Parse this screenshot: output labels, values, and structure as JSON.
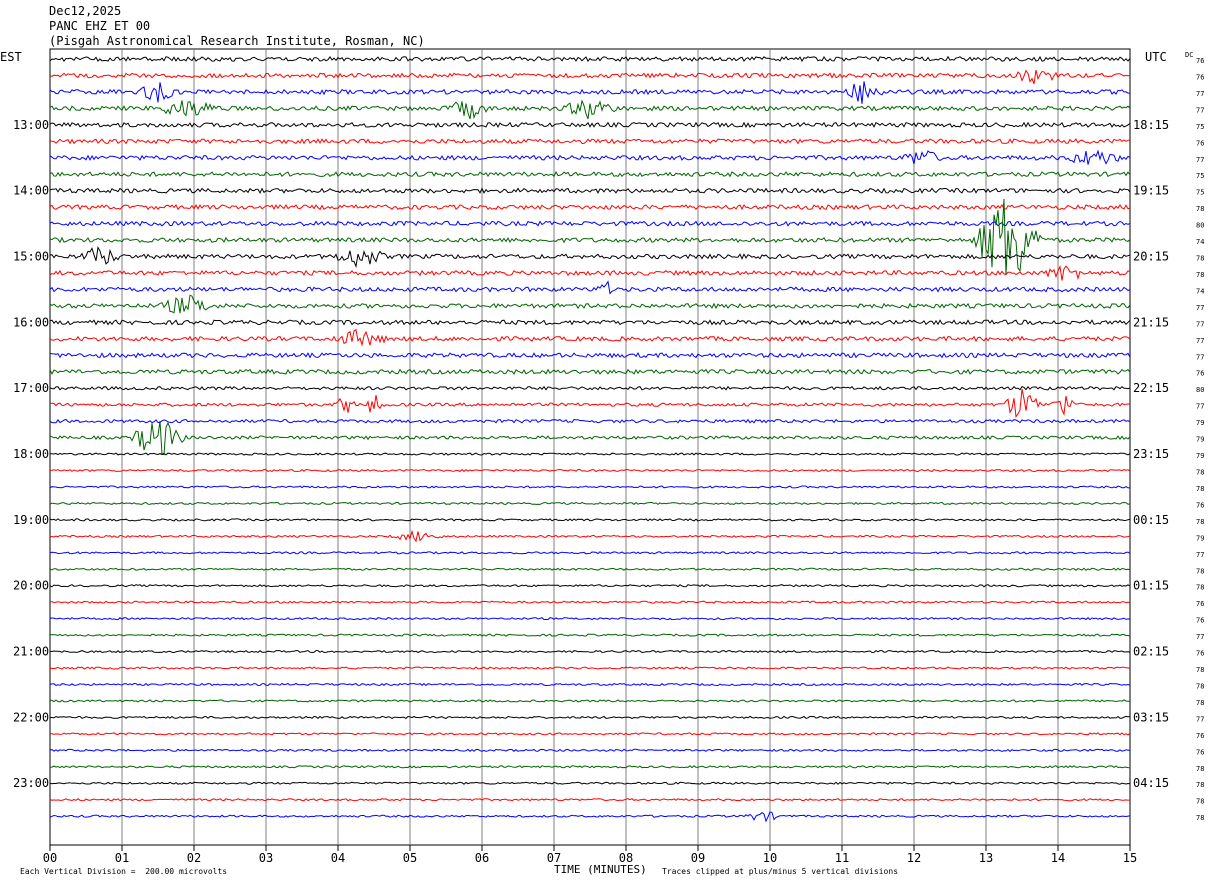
{
  "header": {
    "date": "Dec12,2025",
    "station": "PANC EHZ ET 00",
    "site": "(Pisgah Astronomical Research Institute, Rosman, NC)"
  },
  "chart_data": {
    "type": "line",
    "left_timezone_label": "EST",
    "right_timezone_label": "UTC",
    "dc_label": "DC",
    "trace_colors": [
      "#000000",
      "#ff0000",
      "#0000ff",
      "#006400"
    ],
    "trace_count": 47,
    "traces_per_hour": 4,
    "left_hour_labels": [
      "13:00",
      "14:00",
      "15:00",
      "16:00",
      "17:00",
      "18:00",
      "19:00",
      "20:00",
      "21:00",
      "22:00",
      "23:00"
    ],
    "right_hour_labels": [
      "18:15",
      "19:15",
      "20:15",
      "21:15",
      "22:15",
      "23:15",
      "00:15",
      "01:15",
      "02:15",
      "03:15",
      "04:15"
    ],
    "dc_offsets": [
      76,
      76,
      77,
      77,
      75,
      76,
      77,
      75,
      75,
      78,
      80,
      74,
      78,
      78,
      74,
      77,
      77,
      77,
      77,
      76,
      80,
      77,
      79,
      79,
      79,
      78,
      78,
      76,
      78,
      79,
      77,
      78,
      78,
      76,
      76,
      77,
      76,
      78,
      78,
      78,
      77,
      76,
      76,
      78,
      78,
      78,
      78
    ],
    "x_ticks": [
      "00",
      "01",
      "02",
      "03",
      "04",
      "05",
      "06",
      "07",
      "08",
      "09",
      "10",
      "11",
      "12",
      "13",
      "14",
      "15"
    ],
    "xlabel": "TIME (MINUTES)",
    "xlim": [
      0,
      15
    ],
    "events": [
      {
        "trace": 1,
        "minute": 13.7,
        "amplitude": 0.6,
        "width": 0.3
      },
      {
        "trace": 2,
        "minute": 1.5,
        "amplitude": 0.5,
        "width": 0.3
      },
      {
        "trace": 2,
        "minute": 11.3,
        "amplitude": 0.7,
        "width": 0.3
      },
      {
        "trace": 3,
        "minute": 1.9,
        "amplitude": 0.5,
        "width": 0.5
      },
      {
        "trace": 3,
        "minute": 5.8,
        "amplitude": 0.6,
        "width": 0.3
      },
      {
        "trace": 3,
        "minute": 7.5,
        "amplitude": 0.6,
        "width": 0.4
      },
      {
        "trace": 6,
        "minute": 12.1,
        "amplitude": 0.5,
        "width": 0.3
      },
      {
        "trace": 6,
        "minute": 14.5,
        "amplitude": 0.5,
        "width": 0.4
      },
      {
        "trace": 11,
        "minute": 13.3,
        "amplitude": 3.2,
        "width": 0.5
      },
      {
        "trace": 12,
        "minute": 0.7,
        "amplitude": 0.6,
        "width": 0.3
      },
      {
        "trace": 12,
        "minute": 4.3,
        "amplitude": 0.6,
        "width": 0.4
      },
      {
        "trace": 13,
        "minute": 14.1,
        "amplitude": 0.5,
        "width": 0.3
      },
      {
        "trace": 14,
        "minute": 7.7,
        "amplitude": 0.7,
        "width": 0.1
      },
      {
        "trace": 15,
        "minute": 1.9,
        "amplitude": 0.6,
        "width": 0.4
      },
      {
        "trace": 17,
        "minute": 4.3,
        "amplitude": 0.5,
        "width": 0.4
      },
      {
        "trace": 21,
        "minute": 4.1,
        "amplitude": 0.6,
        "width": 0.15
      },
      {
        "trace": 21,
        "minute": 4.5,
        "amplitude": 0.6,
        "width": 0.15
      },
      {
        "trace": 21,
        "minute": 13.5,
        "amplitude": 1.0,
        "width": 0.3
      },
      {
        "trace": 21,
        "minute": 14.1,
        "amplitude": 0.7,
        "width": 0.2
      },
      {
        "trace": 23,
        "minute": 1.5,
        "amplitude": 1.3,
        "width": 0.4
      },
      {
        "trace": 29,
        "minute": 5.1,
        "amplitude": 0.3,
        "width": 0.4
      },
      {
        "trace": 46,
        "minute": 9.9,
        "amplitude": 0.3,
        "width": 0.3
      }
    ],
    "footer_left": "Each Vertical Division =  200.00 microvolts",
    "footer_right": "Traces clipped at plus/minus 5 vertical divisions"
  }
}
